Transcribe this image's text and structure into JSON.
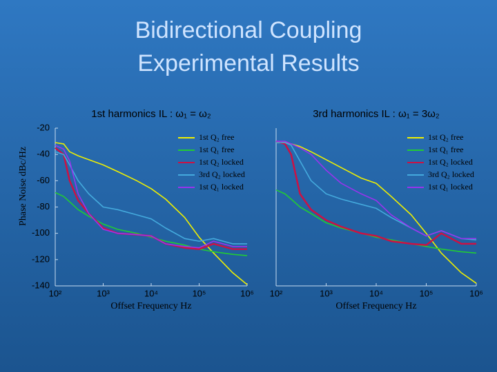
{
  "title": [
    "Bidirectional Coupling",
    "Experimental Results"
  ],
  "chart_data": [
    {
      "type": "line",
      "subtitle": "1st harmonics IL : ω₁ = ω₂",
      "ylabel": "Phase Noise dBc/Hz",
      "xlabel": "Offset Frequency Hz",
      "xscale": "log",
      "legend": "upper right",
      "xlim": [
        100,
        1000000
      ],
      "xticks": [
        {
          "value": 100,
          "label": "10²"
        },
        {
          "value": 1000,
          "label": "10³"
        },
        {
          "value": 10000,
          "label": "10⁴"
        },
        {
          "value": 100000,
          "label": "10⁵"
        },
        {
          "value": 1000000,
          "label": "10⁶"
        }
      ],
      "ylim": [
        -140,
        -20
      ],
      "yticks": [
        -140,
        -120,
        -100,
        -80,
        -60,
        -40,
        -20
      ],
      "x": [
        100,
        150,
        200,
        300,
        500,
        1000,
        2000,
        5000,
        10000,
        20000,
        50000,
        100000,
        200000,
        500000,
        1000000
      ],
      "series": [
        {
          "name": "1st Q₂ free",
          "color": "#f0f000",
          "values": [
            -31,
            -32,
            -38,
            -41,
            -44,
            -48,
            -53,
            -60,
            -66,
            -74,
            -88,
            -103,
            -115,
            -130,
            -139
          ]
        },
        {
          "name": "1st Q₁ free",
          "color": "#22cc33",
          "values": [
            -69,
            -72,
            -76,
            -82,
            -87,
            -93,
            -97,
            -100,
            -103,
            -106,
            -109,
            -112,
            -114,
            -116,
            -117
          ]
        },
        {
          "name": "1st Q₂ locked",
          "color": "#cc1144",
          "values": [
            -35,
            -40,
            -60,
            -75,
            -85,
            -96,
            -100,
            -101,
            -102,
            -108,
            -111,
            -112,
            -108,
            -112,
            -112
          ]
        },
        {
          "name": "3rd Q₂ locked",
          "color": "#44aadd",
          "values": [
            -38,
            -40,
            -48,
            -60,
            -70,
            -80,
            -82,
            -86,
            -89,
            -96,
            -104,
            -106,
            -104,
            -108,
            -108
          ]
        },
        {
          "name": "1st Q₁ locked",
          "color": "#9933ee",
          "values": [
            -33,
            -36,
            -45,
            -70,
            -85,
            -97,
            -100,
            -101,
            -102,
            -108,
            -110,
            -111,
            -106,
            -110,
            -110
          ]
        }
      ]
    },
    {
      "type": "line",
      "subtitle": "3rd harmonics IL : ω₁ = 3ω₂",
      "xlabel": "Offset Frequency Hz",
      "xscale": "log",
      "legend": "upper right",
      "xlim": [
        100,
        1000000
      ],
      "xticks": [
        {
          "value": 100,
          "label": "10²"
        },
        {
          "value": 1000,
          "label": "10³"
        },
        {
          "value": 10000,
          "label": "10⁴"
        },
        {
          "value": 100000,
          "label": "10⁵"
        },
        {
          "value": 1000000,
          "label": "10⁶"
        }
      ],
      "ylim": [
        -140,
        -20
      ],
      "x": [
        100,
        150,
        200,
        300,
        500,
        1000,
        2000,
        5000,
        10000,
        20000,
        50000,
        100000,
        200000,
        500000,
        1000000
      ],
      "series": [
        {
          "name": "1st Q₂ free",
          "color": "#f0f000",
          "values": [
            -31,
            -31,
            -32,
            -34,
            -38,
            -44,
            -50,
            -58,
            -62,
            -72,
            -86,
            -100,
            -115,
            -130,
            -138
          ]
        },
        {
          "name": "1st Q₁ free",
          "color": "#22cc33",
          "values": [
            -67,
            -70,
            -74,
            -80,
            -85,
            -92,
            -96,
            -100,
            -103,
            -105,
            -108,
            -110,
            -112,
            -114,
            -115
          ]
        },
        {
          "name": "1st Q₂ locked",
          "color": "#cc1144",
          "values": [
            -30,
            -32,
            -40,
            -70,
            -82,
            -90,
            -95,
            -100,
            -102,
            -106,
            -108,
            -109,
            -100,
            -108,
            -108
          ]
        },
        {
          "name": "3rd Q₂ locked",
          "color": "#44aadd",
          "values": [
            -31,
            -31,
            -33,
            -45,
            -60,
            -70,
            -74,
            -78,
            -81,
            -88,
            -96,
            -102,
            -98,
            -104,
            -105
          ]
        },
        {
          "name": "1st Q₁ locked",
          "color": "#9933ee",
          "values": [
            -30,
            -30,
            -32,
            -35,
            -40,
            -52,
            -62,
            -70,
            -75,
            -86,
            -96,
            -102,
            -98,
            -104,
            -104
          ]
        }
      ]
    }
  ]
}
